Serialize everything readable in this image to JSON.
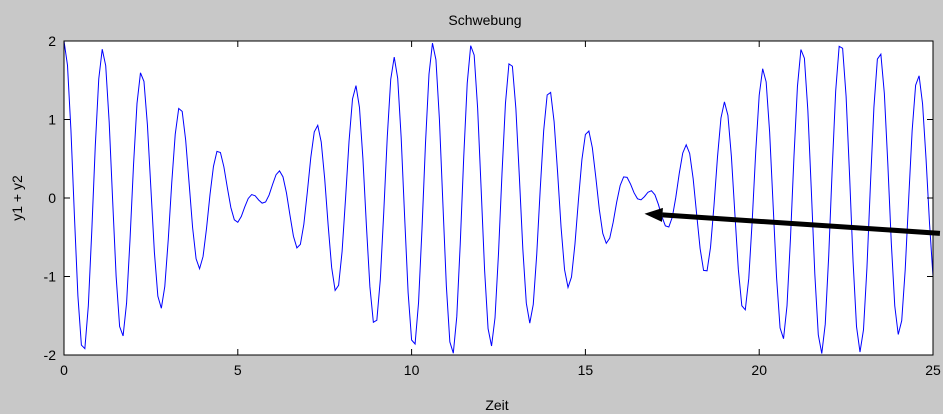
{
  "figure": {
    "background_color": "#c8c8c8",
    "axes_background": "#ffffff"
  },
  "chart_data": {
    "type": "line",
    "title": "Schwebung",
    "xlabel": "Zeit",
    "ylabel": "y1 + y2",
    "xlim": [
      0,
      25
    ],
    "ylim": [
      -2,
      2
    ],
    "xticks": [
      0,
      5,
      10,
      15,
      20,
      25
    ],
    "yticks": [
      -2,
      -1,
      0,
      1,
      2
    ],
    "grid": false,
    "series": [
      {
        "color": "#0000ff",
        "x_start": 0,
        "x_end": 25,
        "n_points": 251,
        "components": [
          {
            "amplitude": 1,
            "frequency_hz": 0.85
          },
          {
            "amplitude": 1,
            "frequency_hz": 0.94
          }
        ]
      }
    ],
    "annotation": {
      "type": "arrow",
      "color": "#000000",
      "from": [
        25.2,
        -0.45
      ],
      "to": [
        16.7,
        -0.2
      ]
    }
  }
}
